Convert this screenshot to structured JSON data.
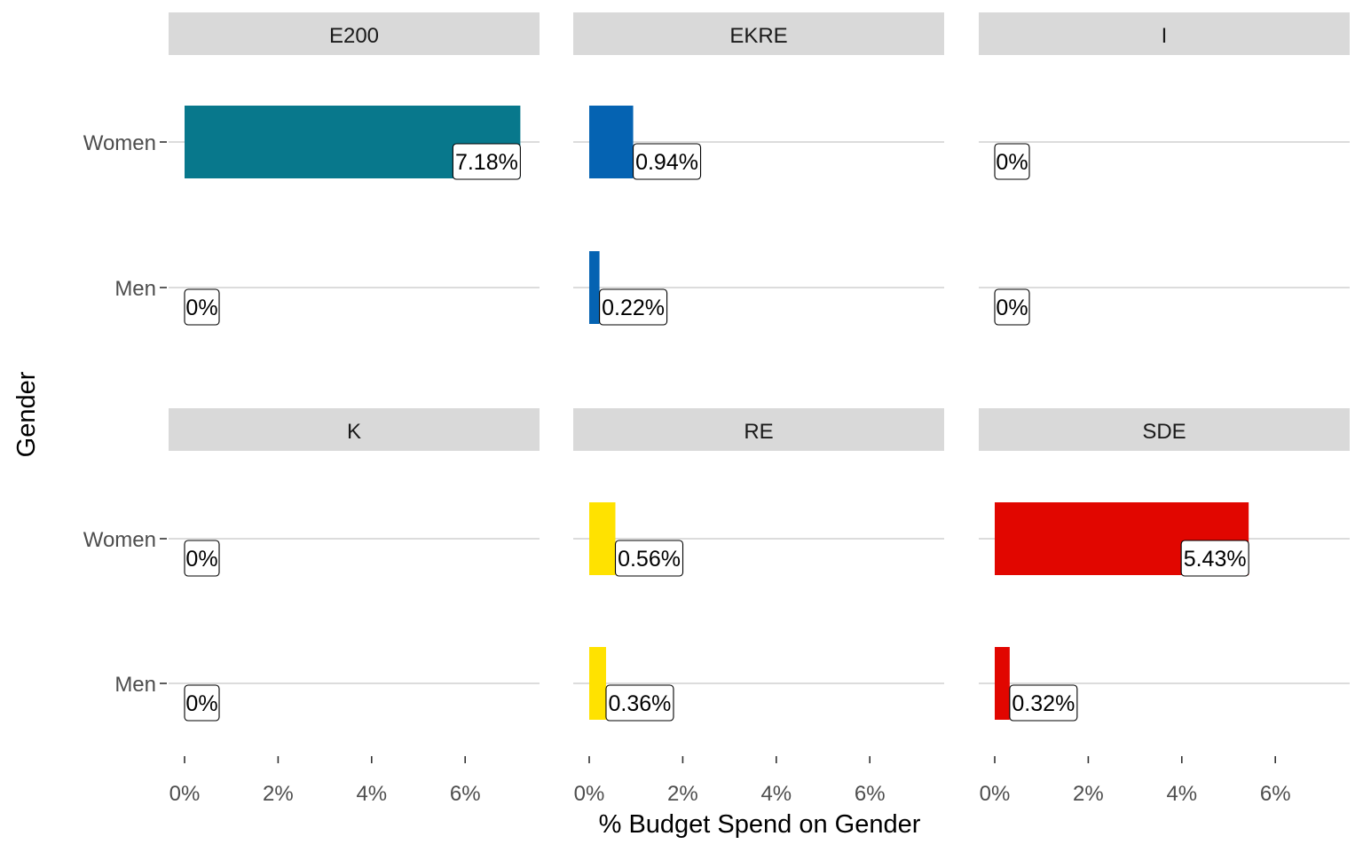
{
  "chart_data": {
    "type": "bar",
    "orientation": "horizontal",
    "facet": "party",
    "xlabel": "% Budget Spend on Gender",
    "ylabel": "Gender",
    "categories": [
      "Women",
      "Men"
    ],
    "x_ticks": [
      "0%",
      "2%",
      "4%",
      "6%"
    ],
    "x_tick_values": [
      0,
      2,
      4,
      6
    ],
    "xlim": [
      -0.35,
      7.55
    ],
    "grid": "horizontal major lines",
    "panels": [
      {
        "name": "E200",
        "color": "#08788C",
        "values": [
          7.18,
          0
        ],
        "labels": [
          "7.18%",
          "0%"
        ]
      },
      {
        "name": "EKRE",
        "color": "#0563B2",
        "values": [
          0.94,
          0.22
        ],
        "labels": [
          "0.94%",
          "0.22%"
        ]
      },
      {
        "name": "I",
        "color": "#00A3E0",
        "values": [
          0,
          0
        ],
        "labels": [
          "0%",
          "0%"
        ]
      },
      {
        "name": "K",
        "color": "#00985F",
        "values": [
          0,
          0
        ],
        "labels": [
          "0%",
          "0%"
        ]
      },
      {
        "name": "RE",
        "color": "#FFE200",
        "values": [
          0.56,
          0.36
        ],
        "labels": [
          "0.56%",
          "0.36%"
        ]
      },
      {
        "name": "SDE",
        "color": "#E10600",
        "values": [
          5.43,
          0.32
        ],
        "labels": [
          "5.43%",
          "0.32%"
        ]
      }
    ]
  }
}
